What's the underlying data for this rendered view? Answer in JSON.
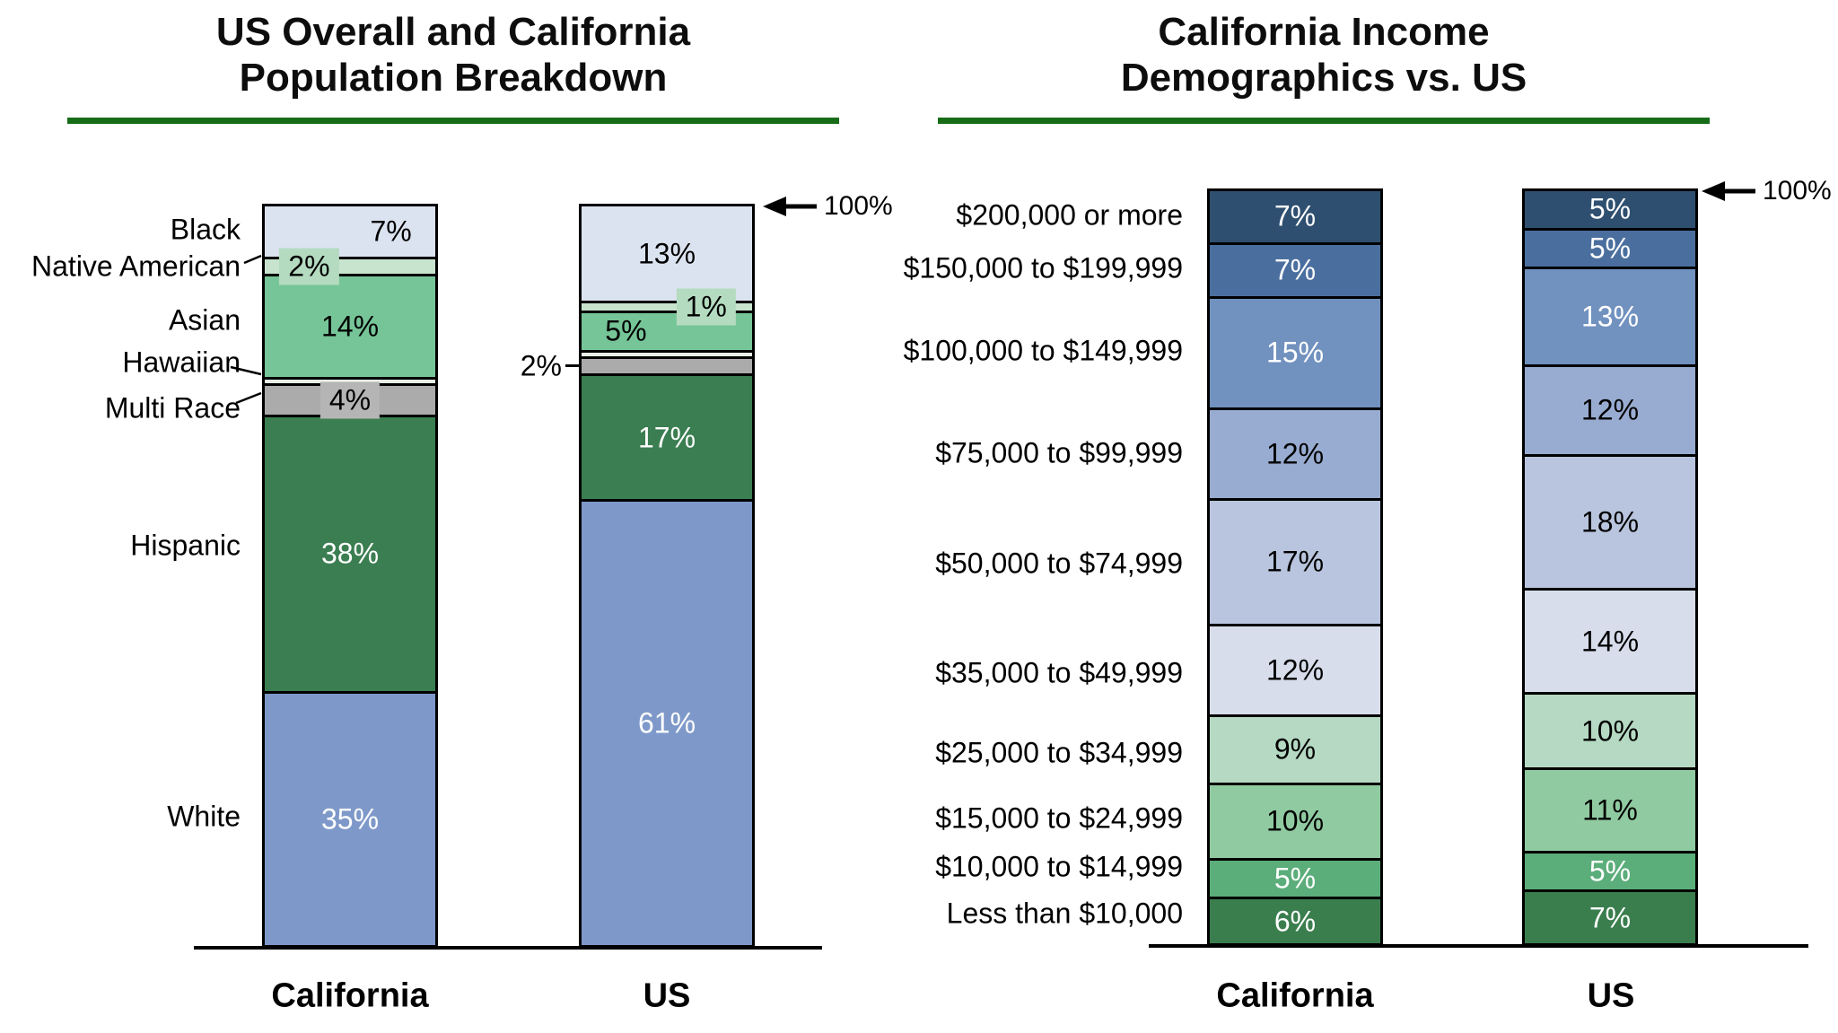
{
  "page": {
    "background": "#ffffff",
    "divider_color": "#176c17"
  },
  "chart_data": [
    {
      "type": "stacked-bar",
      "title": "US Overall and California Population Breakdown",
      "title_lines": [
        "US Overall and California",
        "Population Breakdown"
      ],
      "stack_total_label": "100%",
      "value_suffix": "%",
      "ylim": [
        0,
        100
      ],
      "legend_position": "none",
      "grid": false,
      "categories": [
        "Black",
        "Native American",
        "Asian",
        "Hawaiian",
        "Multi Race",
        "Hispanic",
        "White"
      ],
      "category_colors": [
        "#dce3f0",
        "#c8e4cf",
        "#76c598",
        "#e6eee6",
        "#ababab",
        "#3b7e51",
        "#7e99c9"
      ],
      "series": [
        {
          "name": "California",
          "values": [
            7,
            2,
            14,
            0,
            4,
            38,
            35
          ]
        },
        {
          "name": "US",
          "values": [
            13,
            1,
            5,
            0,
            2,
            17,
            61
          ]
        }
      ]
    },
    {
      "type": "stacked-bar",
      "title": "California Income Demographics vs. US",
      "title_lines": [
        "California Income",
        "Demographics vs. US"
      ],
      "stack_total_label": "100%",
      "value_suffix": "%",
      "ylim": [
        0,
        100
      ],
      "legend_position": "none",
      "grid": false,
      "categories": [
        "$200,000 or more",
        "$150,000 to $199,999",
        "$100,000 to $149,999",
        "$75,000 to $99,999",
        "$50,000 to $74,999",
        "$35,000 to $49,999",
        "$25,000 to $34,999",
        "$15,000 to $24,999",
        "$10,000 to $14,999",
        "Less than $10,000"
      ],
      "category_colors": [
        "#2f4f70",
        "#4a6f9e",
        "#7191bf",
        "#98abd0",
        "#b9c5de",
        "#d7ddeb",
        "#b5d9c2",
        "#90caa1",
        "#5bad7a",
        "#3b7e4e"
      ],
      "series": [
        {
          "name": "California",
          "values": [
            7,
            7,
            15,
            12,
            17,
            12,
            9,
            10,
            5,
            6
          ]
        },
        {
          "name": "US",
          "values": [
            5,
            5,
            13,
            12,
            18,
            14,
            10,
            11,
            5,
            7
          ]
        }
      ]
    }
  ]
}
